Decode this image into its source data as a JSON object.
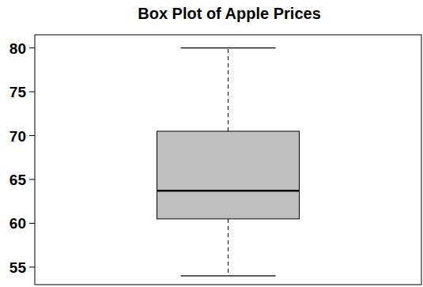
{
  "chart_data": {
    "type": "box",
    "title": "Box Plot of Apple Prices",
    "box": {
      "whisker_low": 54,
      "q1": 60.5,
      "median": 63.7,
      "q3": 70.5,
      "whisker_high": 80
    },
    "color": "#bebebe",
    "ylim": [
      53,
      81.5
    ],
    "yticks": [
      55,
      60,
      65,
      70,
      75,
      80
    ],
    "tick_labels": "y"
  }
}
